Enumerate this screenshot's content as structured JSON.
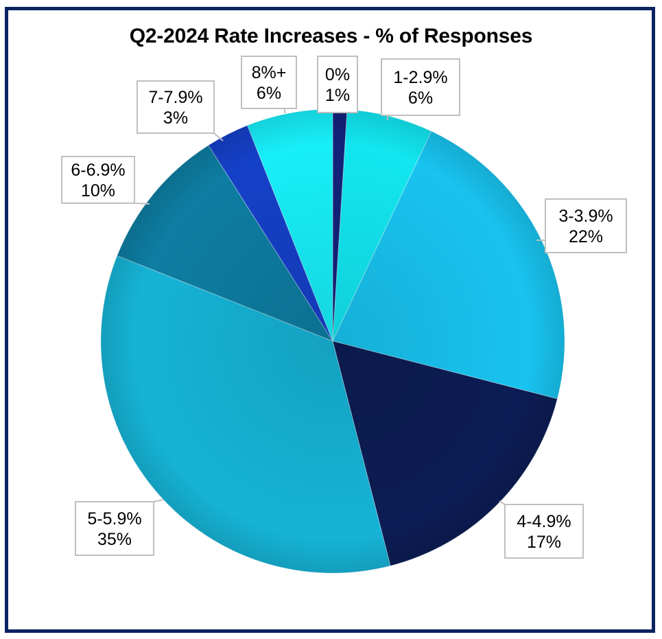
{
  "chart_data": {
    "type": "pie",
    "title": "Q2-2024 Rate Increases - % of Responses",
    "categories": [
      "0%",
      "1-2.9%",
      "3-3.9%",
      "4-4.9%",
      "5-5.9%",
      "6-6.9%",
      "7-7.9%",
      "8%+"
    ],
    "values": [
      1,
      6,
      22,
      17,
      35,
      10,
      3,
      6
    ],
    "value_labels": [
      "1%",
      "6%",
      "22%",
      "17%",
      "35%",
      "10%",
      "3%",
      "6%"
    ],
    "colors": [
      "#13237a",
      "#12e6f0",
      "#18c3ef",
      "#0c1d55",
      "#16b3d6",
      "#0d7da1",
      "#1540c8",
      "#17eef8"
    ],
    "start_angle_deg": 0,
    "direction": "clockwise",
    "legend": "none (callout data labels)",
    "xlabel": "",
    "ylabel": ""
  },
  "frame": {
    "border_color": "#0b2361"
  }
}
